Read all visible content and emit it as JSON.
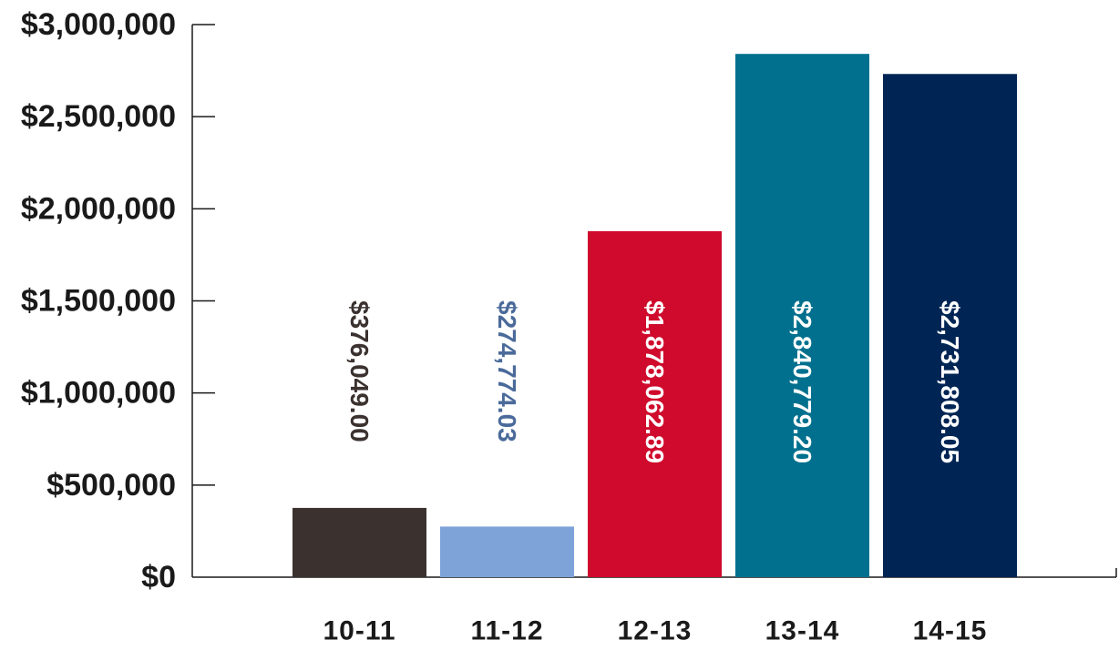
{
  "chart_data": {
    "type": "bar",
    "title": "",
    "xlabel": "",
    "ylabel": "",
    "categories": [
      "10-11",
      "11-12",
      "12-13",
      "13-14",
      "14-15"
    ],
    "values": [
      376049.0,
      274774.03,
      1878062.89,
      2840779.2,
      2731808.05
    ],
    "value_labels": [
      "$376,049.00",
      "$274,774.03",
      "$1,878,062.89",
      "$2,840,779.20",
      "$2,731,808.05"
    ],
    "bar_colors": [
      "#3b3230",
      "#7ea3d8",
      "#cf0a2c",
      "#00708e",
      "#002554"
    ],
    "label_colors": [
      "#3b3230",
      "#4a6a9a",
      "#ffffff",
      "#ffffff",
      "#ffffff"
    ],
    "ylim": [
      0,
      3000000
    ],
    "yticks": [
      0,
      500000,
      1000000,
      1500000,
      2000000,
      2500000,
      3000000
    ],
    "ytick_labels": [
      "$0",
      "$500,000",
      "$1,000,000",
      "$1,500,000",
      "$2,000,000",
      "$2,500,000",
      "$3,000,000"
    ],
    "grid": false,
    "legend": "none"
  }
}
